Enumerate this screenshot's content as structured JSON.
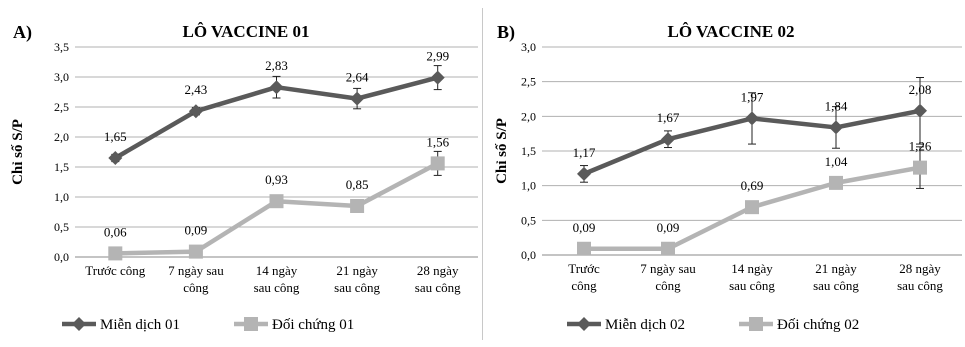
{
  "chart_data": [
    {
      "panel_label": "A)",
      "type": "line",
      "title": "LÔ VACCINE 01",
      "xlabel": "",
      "ylabel": "Chỉ số S/P",
      "categories": [
        [
          "Trước công"
        ],
        [
          "7 ngày sau",
          "công"
        ],
        [
          "14 ngày",
          "sau công"
        ],
        [
          "21 ngày",
          "sau công"
        ],
        [
          "28 ngày",
          "sau công"
        ]
      ],
      "ylim": [
        0,
        3.5
      ],
      "yticks": [
        "0,0",
        "0,5",
        "1,0",
        "1,5",
        "2,0",
        "2,5",
        "3,0",
        "3,5"
      ],
      "grid": true,
      "legend_position": "bottom",
      "series": [
        {
          "name": "Miễn dịch 01",
          "color": "#5a5a5a",
          "marker": "diamond",
          "values": [
            1.65,
            2.43,
            2.83,
            2.64,
            2.99
          ],
          "labels": [
            "1,65",
            "2,43",
            "2,83",
            "2,64",
            "2,99"
          ],
          "error": [
            0.06,
            0.06,
            0.18,
            0.17,
            0.2
          ]
        },
        {
          "name": "Đối chứng 01",
          "color": "#b4b4b4",
          "marker": "square",
          "values": [
            0.06,
            0.09,
            0.93,
            0.85,
            1.56
          ],
          "labels": [
            "0,06",
            "0,09",
            "0,93",
            "0,85",
            "1,56"
          ],
          "error": [
            0.03,
            0.03,
            0.05,
            0.05,
            0.2
          ]
        }
      ]
    },
    {
      "panel_label": "B)",
      "type": "line",
      "title": "LÔ VACCINE 02",
      "xlabel": "",
      "ylabel": "Chỉ số S/P",
      "categories": [
        [
          "Trước",
          "công"
        ],
        [
          "7 ngày sau",
          "công"
        ],
        [
          "14 ngày",
          "sau công"
        ],
        [
          "21 ngày",
          "sau công"
        ],
        [
          "28 ngày",
          "sau công"
        ]
      ],
      "ylim": [
        0,
        3.0
      ],
      "yticks": [
        "0,0",
        "0,5",
        "1,0",
        "1,5",
        "2,0",
        "2,5",
        "3,0"
      ],
      "grid": true,
      "legend_position": "bottom",
      "series": [
        {
          "name": "Miễn dịch 02",
          "color": "#5a5a5a",
          "marker": "diamond",
          "values": [
            1.17,
            1.67,
            1.97,
            1.84,
            2.08
          ],
          "labels": [
            "1,17",
            "1,67",
            "1,97",
            "1,84",
            "2,08"
          ],
          "error": [
            0.12,
            0.12,
            0.37,
            0.3,
            0.48
          ]
        },
        {
          "name": "Đối chứng 02",
          "color": "#b4b4b4",
          "marker": "square",
          "values": [
            0.09,
            0.09,
            0.69,
            1.04,
            1.26
          ],
          "labels": [
            "0,09",
            "0,09",
            "0,69",
            "1,04",
            "1,26"
          ],
          "error": [
            0.02,
            0.02,
            0.05,
            0.05,
            0.3
          ]
        }
      ]
    }
  ]
}
